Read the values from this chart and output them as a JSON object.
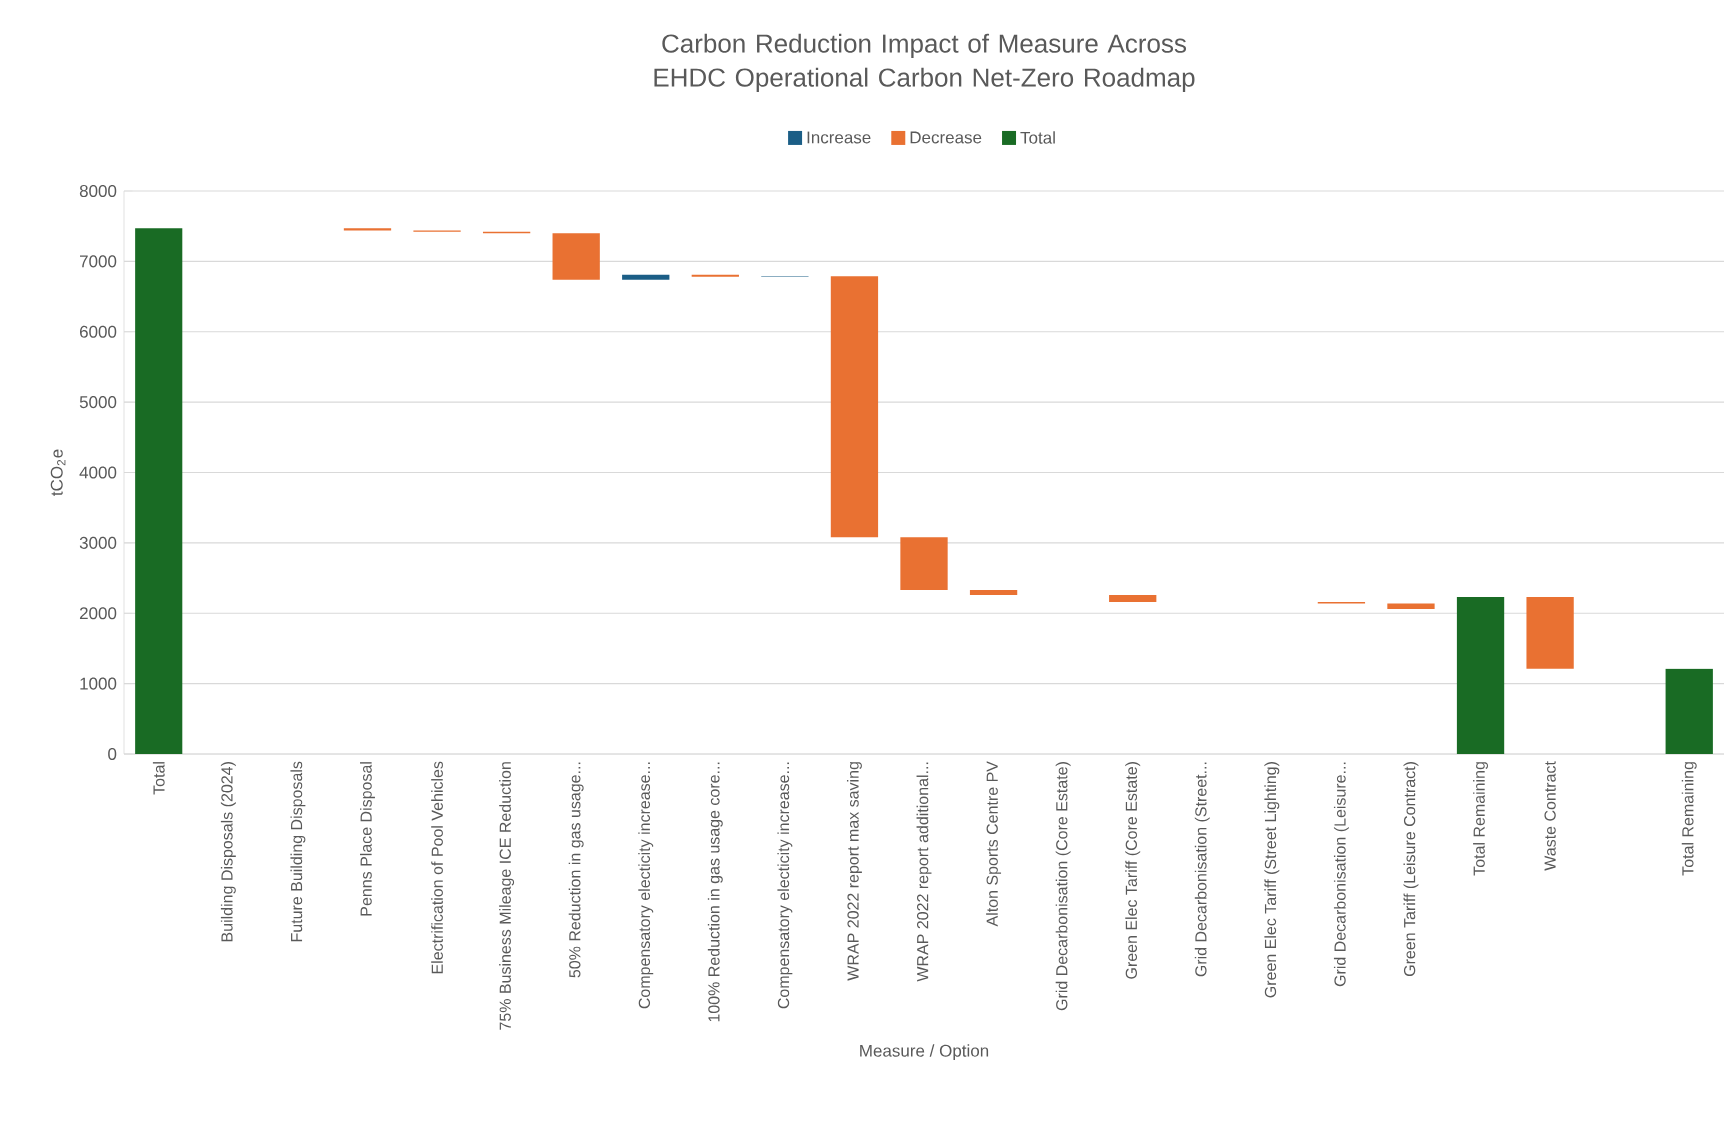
{
  "chart_data": {
    "type": "bar",
    "title": "Carbon Reduction Impact of Measure Across EHDC Operational Carbon Net-Zero Roadmap",
    "xlabel": "Measure / Option",
    "ylabel": "tCO$_{2}$e",
    "categories": [
      "Total",
      "Building Disposals (2024)",
      "Future Building Disposals",
      "Penns Place Disposal",
      "Electrification of Pool Vehicles",
      "75% Business Mileage ICE Reduction",
      "50% Reduction in gas usage...",
      "Compensatory electicity increase...",
      "100% Reduction in gas usage core...",
      "Compensatory electicity increase...",
      "WRAP 2022 report max saving",
      "WRAP 2022 report additional...",
      "Alton Sports Centre PV",
      "Grid Decarbonisation (Core Estate)",
      "Green Elec Tariff (Core Estate)",
      "Grid Decarbonisation (Street...",
      "Green Elec Tariff (Street Lighting)",
      "Grid Decarbonisation (Leisure...",
      "Green Tariff (Leisure Contract)",
      "Total Remaining",
      "Waste Contract",
      null,
      "Total Remaining"
    ],
    "series": [
      {
        "name": "Increase",
        "color": "#1b5e86",
        "values": [
          null,
          null,
          null,
          null,
          null,
          null,
          null,
          70,
          null,
          10,
          null,
          null,
          null,
          null,
          null,
          null,
          null,
          null,
          null,
          null,
          null,
          null,
          null
        ],
        "base": [
          null,
          null,
          null,
          null,
          null,
          null,
          null,
          6740,
          null,
          6780,
          null,
          null,
          null,
          null,
          null,
          null,
          null,
          null,
          null,
          null,
          null,
          null,
          null
        ]
      },
      {
        "name": "Decrease",
        "color": "#e97132",
        "values": [
          null,
          null,
          null,
          30,
          20,
          20,
          660,
          null,
          30,
          null,
          3710,
          750,
          70,
          null,
          100,
          null,
          null,
          20,
          80,
          null,
          1020,
          null,
          null
        ],
        "base": [
          null,
          null,
          null,
          7440,
          7420,
          7400,
          6740,
          null,
          6780,
          null,
          3080,
          2330,
          2260,
          null,
          2160,
          null,
          null,
          2140,
          2060,
          null,
          1210,
          null,
          null
        ]
      },
      {
        "name": "Total",
        "color": "#196b24",
        "values": [
          7470,
          null,
          null,
          null,
          null,
          null,
          null,
          null,
          null,
          null,
          null,
          null,
          null,
          null,
          null,
          null,
          null,
          null,
          null,
          2230,
          null,
          null,
          1210
        ],
        "base": [
          0,
          null,
          null,
          null,
          null,
          null,
          null,
          null,
          null,
          null,
          null,
          null,
          null,
          null,
          null,
          null,
          null,
          null,
          null,
          0,
          null,
          null,
          0
        ]
      }
    ],
    "ylim": [
      0,
      8000
    ],
    "yticks": [
      0,
      1000,
      2000,
      3000,
      4000,
      5000,
      6000,
      7000,
      8000
    ],
    "grid": "y",
    "legend": "top"
  }
}
